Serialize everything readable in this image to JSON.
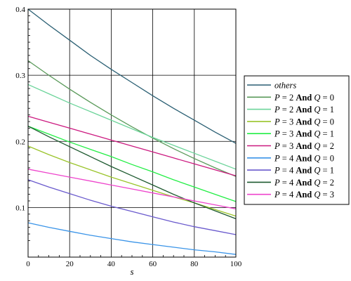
{
  "chart_data": {
    "type": "line",
    "title": "",
    "xlabel": "s",
    "ylabel": "",
    "xlim": [
      0,
      100
    ],
    "ylim": [
      0.025,
      0.4
    ],
    "x_ticks": [
      0,
      20,
      40,
      60,
      80,
      100
    ],
    "x_tick_labels": [
      "0",
      "20",
      "40",
      "60",
      "80",
      "100"
    ],
    "y_ticks": [
      0.1,
      0.2,
      0.3,
      0.4
    ],
    "y_tick_labels": [
      "0.1",
      "0.2",
      "0.3",
      "0.4"
    ],
    "grid": true,
    "legend_position": "right",
    "x": [
      0,
      10,
      20,
      30,
      40,
      50,
      60,
      70,
      80,
      90,
      100
    ],
    "series": [
      {
        "name": "others",
        "name_parts": [
          {
            "t": "others",
            "s": "it"
          }
        ],
        "color": "#2a5f73",
        "values": [
          0.4,
          0.376,
          0.353,
          0.33,
          0.309,
          0.289,
          0.269,
          0.25,
          0.232,
          0.214,
          0.197
        ]
      },
      {
        "name": "P = 2 And Q = 0",
        "name_parts": [
          {
            "t": "P",
            "s": "it"
          },
          {
            "t": " = 2 ",
            "s": ""
          },
          {
            "t": "And",
            "s": "bd"
          },
          {
            "t": " Q",
            "s": "it"
          },
          {
            "t": " = 0",
            "s": ""
          }
        ],
        "color": "#5a9a5a",
        "values": [
          0.322,
          0.3,
          0.279,
          0.259,
          0.24,
          0.222,
          0.205,
          0.189,
          0.174,
          0.16,
          0.147
        ]
      },
      {
        "name": "P = 2 And Q = 1",
        "name_parts": [
          {
            "t": "P",
            "s": "it"
          },
          {
            "t": " = 2 ",
            "s": ""
          },
          {
            "t": "And",
            "s": "bd"
          },
          {
            "t": " Q",
            "s": "it"
          },
          {
            "t": " = 1",
            "s": ""
          }
        ],
        "color": "#6cd49a",
        "values": [
          0.286,
          0.272,
          0.258,
          0.245,
          0.232,
          0.219,
          0.206,
          0.194,
          0.182,
          0.17,
          0.158
        ]
      },
      {
        "name": "P = 3 And Q = 0",
        "name_parts": [
          {
            "t": "P",
            "s": "it"
          },
          {
            "t": " = 3 ",
            "s": ""
          },
          {
            "t": "And",
            "s": "bd"
          },
          {
            "t": " Q",
            "s": "it"
          },
          {
            "t": " = 0",
            "s": ""
          }
        ],
        "color": "#9ac42a",
        "values": [
          0.193,
          0.18,
          0.168,
          0.157,
          0.146,
          0.136,
          0.126,
          0.116,
          0.107,
          0.097,
          0.087
        ]
      },
      {
        "name": "P = 3 And Q = 1",
        "name_parts": [
          {
            "t": "P",
            "s": "it"
          },
          {
            "t": " = 3 ",
            "s": ""
          },
          {
            "t": "And",
            "s": "bd"
          },
          {
            "t": " Q",
            "s": "it"
          },
          {
            "t": " = 1",
            "s": ""
          }
        ],
        "color": "#22ee44",
        "values": [
          0.223,
          0.211,
          0.199,
          0.188,
          0.177,
          0.165,
          0.154,
          0.142,
          0.131,
          0.12,
          0.109
        ]
      },
      {
        "name": "P = 3 And Q = 2",
        "name_parts": [
          {
            "t": "P",
            "s": "it"
          },
          {
            "t": " = 3 ",
            "s": ""
          },
          {
            "t": "And",
            "s": "bd"
          },
          {
            "t": " Q",
            "s": "it"
          },
          {
            "t": " = 2",
            "s": ""
          }
        ],
        "color": "#cc1a80",
        "values": [
          0.238,
          0.229,
          0.22,
          0.211,
          0.202,
          0.193,
          0.184,
          0.175,
          0.166,
          0.157,
          0.148
        ]
      },
      {
        "name": "P = 4 And Q = 0",
        "name_parts": [
          {
            "t": "P",
            "s": "it"
          },
          {
            "t": " = 4 ",
            "s": ""
          },
          {
            "t": "And",
            "s": "bd"
          },
          {
            "t": " Q",
            "s": "it"
          },
          {
            "t": " = 0",
            "s": ""
          }
        ],
        "color": "#3a94e8",
        "values": [
          0.077,
          0.07,
          0.064,
          0.058,
          0.053,
          0.048,
          0.044,
          0.04,
          0.036,
          0.033,
          0.029
        ]
      },
      {
        "name": "P = 4 And Q = 1",
        "name_parts": [
          {
            "t": "P",
            "s": "it"
          },
          {
            "t": " = 4 ",
            "s": ""
          },
          {
            "t": "And",
            "s": "bd"
          },
          {
            "t": " Q",
            "s": "it"
          },
          {
            "t": " = 1",
            "s": ""
          }
        ],
        "color": "#6a5acd",
        "values": [
          0.142,
          0.131,
          0.121,
          0.111,
          0.102,
          0.094,
          0.086,
          0.078,
          0.071,
          0.065,
          0.059
        ]
      },
      {
        "name": "P = 4 And Q = 2",
        "name_parts": [
          {
            "t": "P",
            "s": "it"
          },
          {
            "t": " = 4 ",
            "s": ""
          },
          {
            "t": "And",
            "s": "bd"
          },
          {
            "t": " Q",
            "s": "it"
          },
          {
            "t": " = 2",
            "s": ""
          }
        ],
        "color": "#1e5a30",
        "values": [
          0.223,
          0.207,
          0.192,
          0.177,
          0.162,
          0.148,
          0.134,
          0.12,
          0.107,
          0.095,
          0.083
        ]
      },
      {
        "name": "P = 4 And Q = 3",
        "name_parts": [
          {
            "t": "P",
            "s": "it"
          },
          {
            "t": " = 4 ",
            "s": ""
          },
          {
            "t": "And",
            "s": "bd"
          },
          {
            "t": " Q",
            "s": "it"
          },
          {
            "t": " = 3",
            "s": ""
          }
        ],
        "color": "#ee44cc",
        "values": [
          0.158,
          0.152,
          0.146,
          0.14,
          0.134,
          0.128,
          0.122,
          0.116,
          0.11,
          0.104,
          0.098
        ]
      }
    ]
  }
}
